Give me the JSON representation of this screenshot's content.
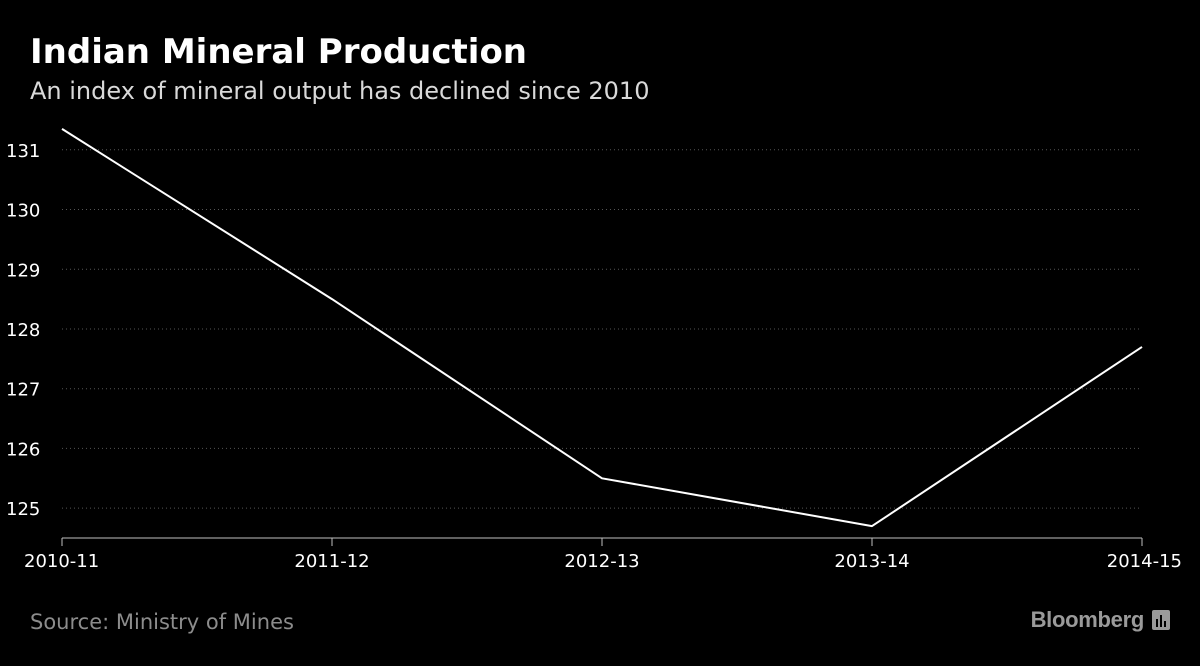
{
  "header": {
    "title": "Indian Mineral Production",
    "subtitle": "An index of mineral output has declined since 2010"
  },
  "footer": {
    "source": "Source: Ministry of Mines",
    "brand": "Bloomberg",
    "brand_icon": "bloomberg-bar-chart-icon"
  },
  "colors": {
    "background": "#000000",
    "line": "#ffffff",
    "grid": "#555555",
    "tick_text": "#ffffff",
    "source_text": "#8c8c8c"
  },
  "chart_data": {
    "type": "line",
    "title": "Indian Mineral Production",
    "subtitle": "An index of mineral output has declined since 2010",
    "categories": [
      "2010-11",
      "2011-12",
      "2012-13",
      "2013-14",
      "2014-15"
    ],
    "series": [
      {
        "values": [
          131.35,
          128.5,
          125.5,
          124.7,
          127.7
        ]
      }
    ],
    "xlabel": "",
    "ylabel": "",
    "ylim": [
      124.5,
      131.7
    ],
    "yticks": [
      125,
      126,
      127,
      128,
      129,
      130,
      131
    ],
    "grid": true,
    "legend": "none"
  }
}
